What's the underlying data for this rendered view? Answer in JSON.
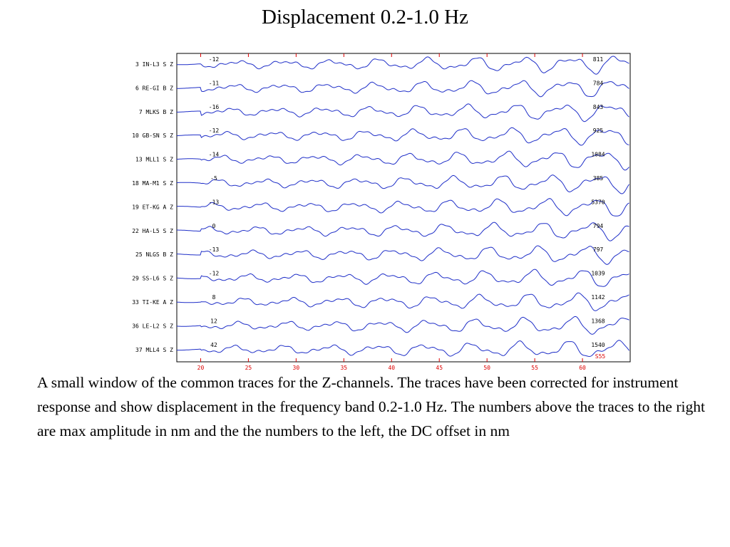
{
  "title": "Displacement 0.2-1.0 Hz",
  "caption": "A small window of the common traces for the Z-channels. The traces have been corrected for instrument response and show displacement in the frequency band 0.2-1.0 Hz. The numbers above the traces to the right are max amplitude in nm and the the numbers to the left, the DC offset in nm",
  "chart_data": {
    "type": "line",
    "title": "Displacement 0.2-1.0 Hz",
    "xlabel": "",
    "ylabel": "",
    "xlim": [
      17.5,
      65
    ],
    "x_ticks": [
      20,
      25,
      30,
      35,
      40,
      45,
      50,
      55,
      60
    ],
    "grid": false,
    "colors": {
      "trace": "#1f2fc8",
      "ticks": "#dd0000",
      "frame": "#000000"
    },
    "traces": [
      {
        "label": "3 IN-L3 S  Z",
        "dc_offset": "-12",
        "max_amplitude": "811"
      },
      {
        "label": "6 RE-GI B  Z",
        "dc_offset": "-11",
        "max_amplitude": "784"
      },
      {
        "label": "7 MLKS  B  Z",
        "dc_offset": "-16",
        "max_amplitude": "843"
      },
      {
        "label": "10 GB-SN S  Z",
        "dc_offset": "-12",
        "max_amplitude": "925"
      },
      {
        "label": "13 MLL1  S  Z",
        "dc_offset": "-14",
        "max_amplitude": "1084"
      },
      {
        "label": "18 MA-M1 S  Z",
        "dc_offset": "-5",
        "max_amplitude": "385"
      },
      {
        "label": "19 ET-KG A  Z",
        "dc_offset": "-13",
        "max_amplitude": "5370"
      },
      {
        "label": "22 HA-L5 S  Z",
        "dc_offset": "0",
        "max_amplitude": "794"
      },
      {
        "label": "25 NLGS  B  Z",
        "dc_offset": "-13",
        "max_amplitude": "797"
      },
      {
        "label": "29 SS-L6 S  Z",
        "dc_offset": "-12",
        "max_amplitude": "1039"
      },
      {
        "label": "33 TI-KE A  Z",
        "dc_offset": "8",
        "max_amplitude": "1142"
      },
      {
        "label": "36 LE-L2 S  Z",
        "dc_offset": "12",
        "max_amplitude": "1368"
      },
      {
        "label": "37 MLL4  S  Z",
        "dc_offset": "42",
        "max_amplitude": "1540"
      }
    ],
    "annotations": [
      "S55"
    ]
  }
}
